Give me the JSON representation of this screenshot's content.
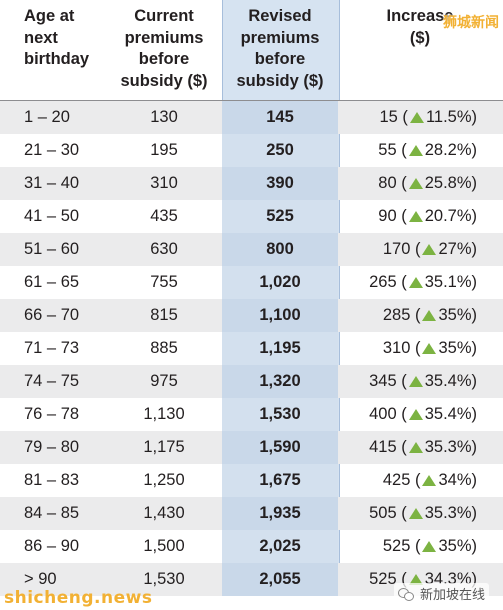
{
  "table": {
    "headers": {
      "age": [
        "Age at",
        "next",
        "birthday"
      ],
      "current": [
        "Current",
        "premiums",
        "before",
        "subsidy ($)"
      ],
      "revised": [
        "Revised",
        "premiums",
        "before",
        "subsidy ($)"
      ],
      "increase": [
        "Increase",
        "($)"
      ]
    },
    "rows": [
      {
        "age": "1 – 20",
        "current": "130",
        "revised": "145",
        "inc": "15 (",
        "pct": "11.5%)"
      },
      {
        "age": "21 – 30",
        "current": "195",
        "revised": "250",
        "inc": "55 (",
        "pct": "28.2%)"
      },
      {
        "age": "31 – 40",
        "current": "310",
        "revised": "390",
        "inc": "80 (",
        "pct": "25.8%)"
      },
      {
        "age": "41 – 50",
        "current": "435",
        "revised": "525",
        "inc": "90 (",
        "pct": "20.7%)"
      },
      {
        "age": "51 – 60",
        "current": "630",
        "revised": "800",
        "inc": "170 (",
        "pct": "27%)"
      },
      {
        "age": "61 – 65",
        "current": "755",
        "revised": "1,020",
        "inc": "265 (",
        "pct": "35.1%)"
      },
      {
        "age": "66 – 70",
        "current": "815",
        "revised": "1,100",
        "inc": "285 (",
        "pct": "35%)"
      },
      {
        "age": "71 – 73",
        "current": "885",
        "revised": "1,195",
        "inc": "310 (",
        "pct": "35%)"
      },
      {
        "age": "74 – 75",
        "current": "975",
        "revised": "1,320",
        "inc": "345 (",
        "pct": "35.4%)"
      },
      {
        "age": "76 – 78",
        "current": "1,130",
        "revised": "1,530",
        "inc": "400 (",
        "pct": "35.4%)"
      },
      {
        "age": "79 – 80",
        "current": "1,175",
        "revised": "1,590",
        "inc": "415 (",
        "pct": "35.3%)"
      },
      {
        "age": "81 – 83",
        "current": "1,250",
        "revised": "1,675",
        "inc": "425 (",
        "pct": "34%)"
      },
      {
        "age": "84 – 85",
        "current": "1,430",
        "revised": "1,935",
        "inc": "505 (",
        "pct": "35.3%)"
      },
      {
        "age": "86 – 90",
        "current": "1,500",
        "revised": "2,025",
        "inc": "525 (",
        "pct": "35%)"
      },
      {
        "age": "> 90",
        "current": "1,530",
        "revised": "2,055",
        "inc": "525 (",
        "pct": "34.3%)"
      }
    ]
  },
  "watermarks": {
    "top_right": "狮城新闻",
    "bottom_left": "shicheng.news",
    "bottom_right": "新加坡在线"
  },
  "colors": {
    "highlight_column": "#d6e3f1",
    "row_shade": "#ebebec",
    "up_triangle": "#7cb342",
    "watermark": "#f2b134"
  },
  "icons": {
    "increase_marker": "up-triangle-icon",
    "wechat": "wechat-icon"
  }
}
